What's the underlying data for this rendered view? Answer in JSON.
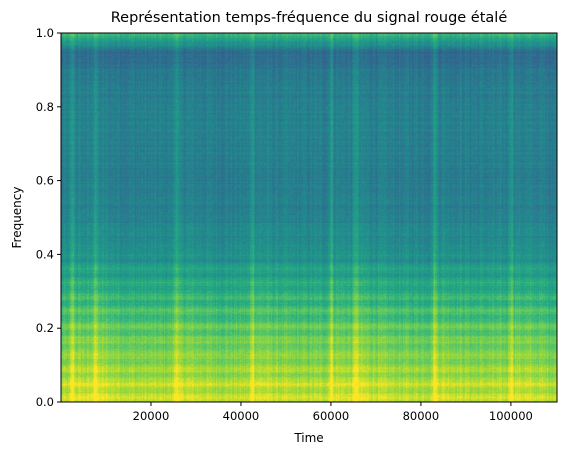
{
  "chart_data": {
    "type": "heatmap",
    "title": "Représentation temps-fréquence du signal rouge étalé",
    "xlabel": "Time",
    "ylabel": "Frequency",
    "xlim": [
      0,
      110250
    ],
    "ylim": [
      0,
      1.0
    ],
    "x_ticks": [
      20000,
      40000,
      60000,
      80000,
      100000
    ],
    "x_tick_labels": [
      "20000",
      "40000",
      "60000",
      "80000",
      "100000"
    ],
    "y_ticks": [
      0.0,
      0.2,
      0.4,
      0.6,
      0.8,
      1.0
    ],
    "y_tick_labels": [
      "0.0",
      "0.2",
      "0.4",
      "0.6",
      "0.8",
      "1.0"
    ],
    "colormap": "viridis",
    "grid": false,
    "bright_vertical_events_x": [
      2500,
      7500,
      25500,
      42500,
      60000,
      65500,
      83000,
      100000
    ],
    "frequency_profile": [
      {
        "freq": 0.0,
        "level": 0.9
      },
      {
        "freq": 0.05,
        "level": 0.88
      },
      {
        "freq": 0.1,
        "level": 0.82
      },
      {
        "freq": 0.2,
        "level": 0.74
      },
      {
        "freq": 0.3,
        "level": 0.62
      },
      {
        "freq": 0.4,
        "level": 0.5
      },
      {
        "freq": 0.5,
        "level": 0.44
      },
      {
        "freq": 0.6,
        "level": 0.42
      },
      {
        "freq": 0.7,
        "level": 0.43
      },
      {
        "freq": 0.8,
        "level": 0.44
      },
      {
        "freq": 0.9,
        "level": 0.4
      },
      {
        "freq": 0.95,
        "level": 0.35
      },
      {
        "freq": 1.0,
        "level": 0.7
      }
    ],
    "colors": {
      "low": "#3b528b",
      "mid": "#21918c",
      "high": "#fde725"
    }
  }
}
